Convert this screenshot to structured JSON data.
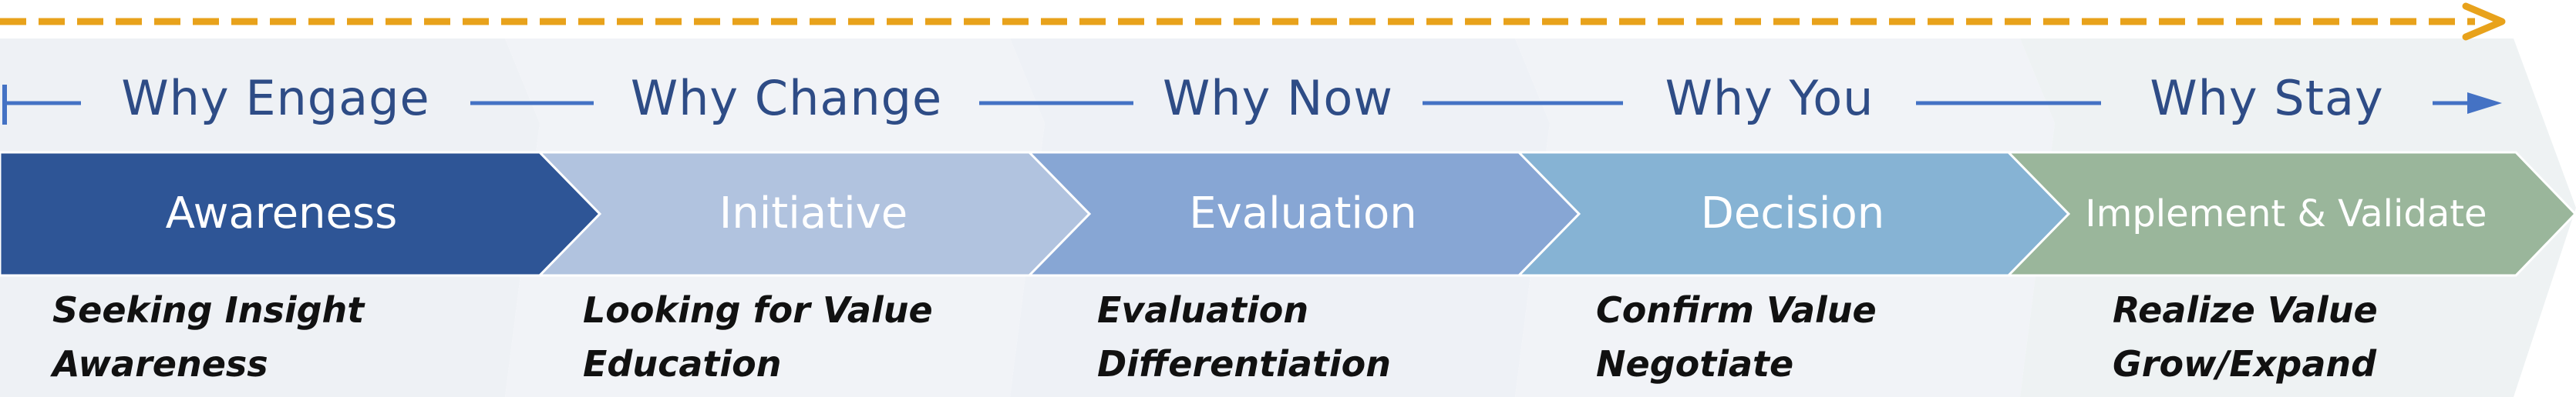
{
  "why_labels": [
    "Why Engage",
    "Why Change",
    "Why Now",
    "Why You",
    "Why Stay"
  ],
  "stages": [
    "Awareness",
    "Initiative",
    "Evaluation",
    "Decision",
    "Implement & Validate"
  ],
  "activities": [
    {
      "line1": "Seeking Insight",
      "line2": "Awareness"
    },
    {
      "line1": "Looking for Value",
      "line2": "Education"
    },
    {
      "line1": "Evaluation",
      "line2": "Differentiation"
    },
    {
      "line1": "Confirm Value",
      "line2": "Negotiate"
    },
    {
      "line1": "Realize Value",
      "line2": "Grow/Expand"
    }
  ],
  "colors": {
    "stage_fills": [
      "#2e5596",
      "#b1c3df",
      "#87a6d4",
      "#86b3d4",
      "#9ab69b"
    ],
    "why_text": "#2e4c86",
    "connector_line": "#4472c4",
    "dashed_arrow": "#e8a21b",
    "background_band": "#eef1f6"
  }
}
